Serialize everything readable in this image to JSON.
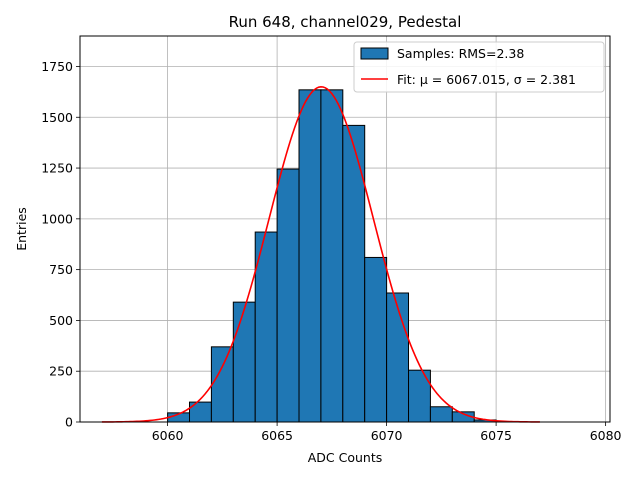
{
  "chart_data": {
    "type": "bar",
    "title": "Run 648, channel029, Pedestal",
    "xlabel": "ADC Counts",
    "ylabel": "Entries",
    "xlim": [
      6056,
      6080.2
    ],
    "ylim": [
      0,
      1900
    ],
    "xticks": [
      6060,
      6065,
      6070,
      6075,
      6080
    ],
    "yticks": [
      0,
      250,
      500,
      750,
      1000,
      1250,
      1500,
      1750
    ],
    "grid": true,
    "legend_position": "top-right",
    "colors": {
      "bars": "#1f77b4",
      "bar_edge": "#000000",
      "fit": "#ff0000"
    },
    "histogram": {
      "name": "Samples: RMS=2.38",
      "bin_edges": [
        6060,
        6061,
        6062,
        6063,
        6064,
        6065,
        6066,
        6067,
        6068,
        6069,
        6070,
        6071,
        6072,
        6073,
        6074,
        6075
      ],
      "counts": [
        45,
        98,
        370,
        590,
        935,
        1245,
        1635,
        1635,
        1460,
        810,
        635,
        255,
        75,
        50,
        10
      ]
    },
    "fit": {
      "name": "Fit: μ = 6067.015, σ = 2.381",
      "mu": 6067.015,
      "sigma": 2.381,
      "amplitude": 1650,
      "x_range": [
        6057,
        6077
      ]
    }
  }
}
